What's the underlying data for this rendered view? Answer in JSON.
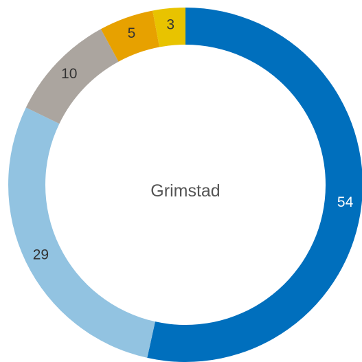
{
  "chart_data": {
    "type": "donut",
    "title": "Grimstad",
    "categories": [
      null,
      null,
      null,
      null,
      null
    ],
    "values": [
      54,
      29,
      10,
      5,
      3
    ],
    "colors": [
      "#006fbd",
      "#92c3e1",
      "#aba59f",
      "#e7a100",
      "#e8c300"
    ]
  }
}
